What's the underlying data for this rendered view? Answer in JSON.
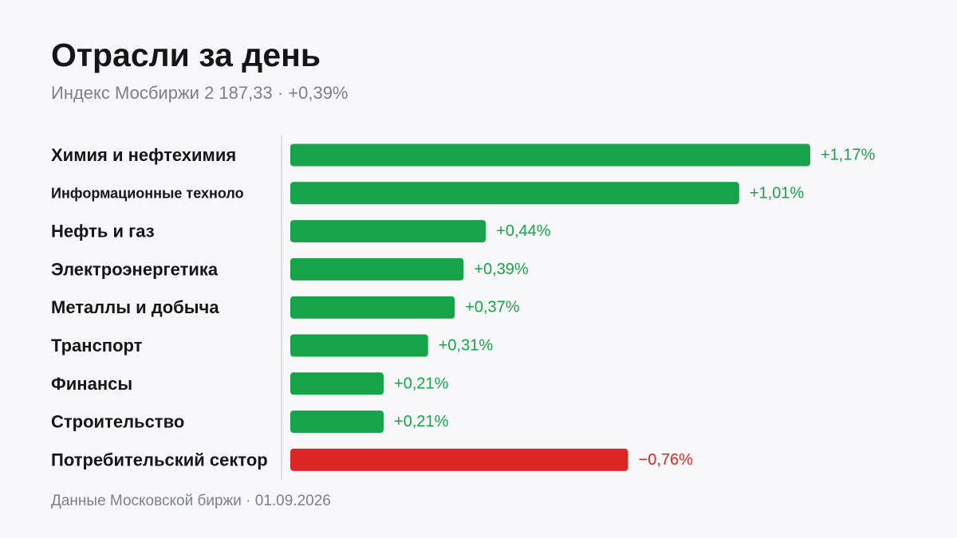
{
  "header": {
    "title": "Отрасли за день",
    "subtitle": "Индекс Мосбиржи 2 187,33 · +0,39%"
  },
  "footer": {
    "source": "Данные Московской биржи · 01.09.2026"
  },
  "colors": {
    "positive": "#17a34a",
    "negative": "#dc2626",
    "axis": "#d4d6dc",
    "label": "#16161a"
  },
  "chart_data": {
    "type": "bar",
    "orientation": "horizontal",
    "categories": [
      "Химия и нефтехимия",
      "Информационные техноло",
      "Нефть и газ",
      "Электроэнергетика",
      "Металлы и добыча",
      "Транспорт",
      "Финансы",
      "Строительство",
      "Потребительский сектор"
    ],
    "values": [
      1.17,
      1.01,
      0.44,
      0.39,
      0.37,
      0.31,
      0.21,
      0.21,
      -0.76
    ],
    "value_labels": [
      "+1,17%",
      "+1,01%",
      "+0,44%",
      "+0,39%",
      "+0,37%",
      "+0,31%",
      "+0,21%",
      "+0,21%",
      "−0,76%"
    ],
    "unit": "%",
    "bar_length": "absolute value",
    "grid": false,
    "legend": "none"
  }
}
